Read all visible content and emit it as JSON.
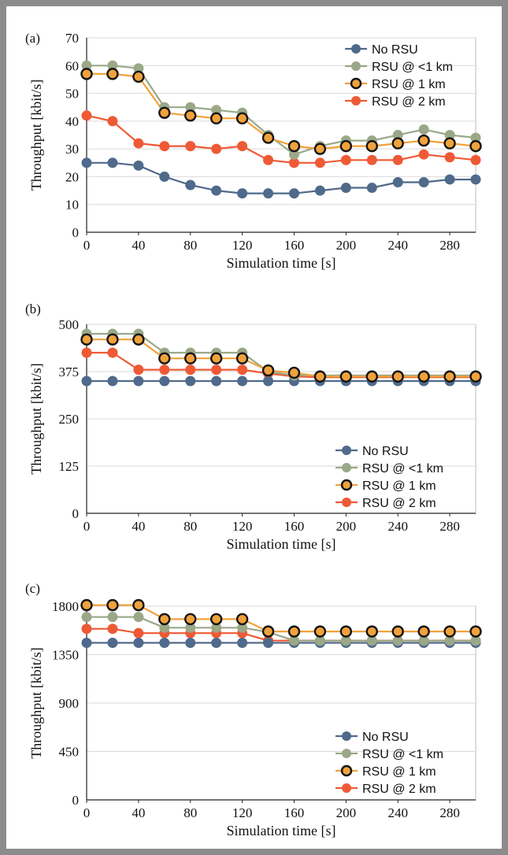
{
  "colors": {
    "no_rsu": "#4f6a8a",
    "rsu_lt1": "#9aa888",
    "rsu_1": "#f0a23c",
    "rsu_1_edge": "#151515",
    "rsu_2": "#ee5a35",
    "grid": "#d9d9d9",
    "frame": "#8c8c8c"
  },
  "chart_data": [
    {
      "type": "line",
      "panel_label": "(a)",
      "xlabel": "Simulation time [s]",
      "ylabel": "Throughput [kbit/s]",
      "x": [
        0,
        20,
        40,
        60,
        80,
        100,
        120,
        140,
        160,
        180,
        200,
        220,
        240,
        260,
        280,
        300
      ],
      "xticks": [
        "0",
        "40",
        "80",
        "120",
        "160",
        "200",
        "240",
        "280"
      ],
      "yticks": [
        "0",
        "10",
        "20",
        "30",
        "40",
        "50",
        "60",
        "70"
      ],
      "ylim": [
        0,
        70
      ],
      "xlim": [
        0,
        300
      ],
      "grid": "horizontal",
      "legend_position": "top-right",
      "series": [
        {
          "name": "No RSU",
          "values": [
            25,
            25,
            24,
            20,
            17,
            15,
            14,
            14,
            14,
            15,
            16,
            16,
            18,
            18,
            19,
            19
          ]
        },
        {
          "name": "RSU @ <1 km",
          "values": [
            60,
            60,
            59,
            45,
            45,
            44,
            43,
            35,
            28,
            31,
            33,
            33,
            35,
            37,
            35,
            34
          ]
        },
        {
          "name": "RSU @ 1 km",
          "values": [
            57,
            57,
            56,
            43,
            42,
            41,
            41,
            34,
            31,
            30,
            31,
            31,
            32,
            33,
            32,
            31
          ]
        },
        {
          "name": "RSU @ 2 km",
          "values": [
            42,
            40,
            32,
            31,
            31,
            30,
            31,
            26,
            25,
            25,
            26,
            26,
            26,
            28,
            27,
            26
          ]
        }
      ]
    },
    {
      "type": "line",
      "panel_label": "(b)",
      "xlabel": "Simulation time [s]",
      "ylabel": "Throughput [kbit/s]",
      "x": [
        0,
        20,
        40,
        60,
        80,
        100,
        120,
        140,
        160,
        180,
        200,
        220,
        240,
        260,
        280,
        300
      ],
      "xticks": [
        "0",
        "40",
        "80",
        "120",
        "160",
        "200",
        "240",
        "280"
      ],
      "yticks": [
        "0",
        "125",
        "250",
        "375",
        "500"
      ],
      "ylim": [
        0,
        500
      ],
      "xlim": [
        0,
        300
      ],
      "grid": "horizontal",
      "legend_position": "bottom-right",
      "series": [
        {
          "name": "No RSU",
          "values": [
            350,
            350,
            350,
            350,
            350,
            350,
            350,
            350,
            350,
            350,
            350,
            350,
            350,
            350,
            350,
            350
          ]
        },
        {
          "name": "RSU @ <1 km",
          "values": [
            475,
            475,
            475,
            425,
            425,
            425,
            425,
            375,
            365,
            365,
            365,
            365,
            365,
            365,
            365,
            365
          ]
        },
        {
          "name": "RSU @ 1 km",
          "values": [
            460,
            460,
            460,
            410,
            410,
            410,
            410,
            378,
            372,
            362,
            362,
            362,
            362,
            362,
            362,
            362
          ]
        },
        {
          "name": "RSU @ 2 km",
          "values": [
            425,
            425,
            380,
            380,
            380,
            380,
            380,
            370,
            362,
            360,
            360,
            360,
            360,
            360,
            360,
            360
          ]
        }
      ]
    },
    {
      "type": "line",
      "panel_label": "(c)",
      "xlabel": "Simulation time [s]",
      "ylabel": "Throughput [kbit/s]",
      "x": [
        0,
        20,
        40,
        60,
        80,
        100,
        120,
        140,
        160,
        180,
        200,
        220,
        240,
        260,
        280,
        300
      ],
      "xticks": [
        "0",
        "40",
        "80",
        "120",
        "160",
        "200",
        "240",
        "280"
      ],
      "yticks": [
        "0",
        "450",
        "900",
        "1350",
        "1800"
      ],
      "ylim": [
        0,
        1800
      ],
      "xlim": [
        0,
        300
      ],
      "grid": "horizontal",
      "legend_position": "bottom-right",
      "series": [
        {
          "name": "No RSU",
          "values": [
            1460,
            1460,
            1460,
            1460,
            1460,
            1460,
            1460,
            1460,
            1460,
            1460,
            1460,
            1460,
            1460,
            1460,
            1460,
            1460
          ]
        },
        {
          "name": "RSU @ <1 km",
          "values": [
            1700,
            1700,
            1700,
            1600,
            1600,
            1600,
            1600,
            1560,
            1480,
            1480,
            1480,
            1480,
            1480,
            1480,
            1480,
            1480
          ]
        },
        {
          "name": "RSU @ 1 km",
          "values": [
            1810,
            1810,
            1810,
            1680,
            1680,
            1680,
            1680,
            1565,
            1565,
            1565,
            1565,
            1565,
            1565,
            1565,
            1565,
            1565
          ]
        },
        {
          "name": "RSU @ 2 km",
          "values": [
            1590,
            1590,
            1550,
            1550,
            1550,
            1550,
            1550,
            1480,
            1480,
            1480,
            1480,
            1480,
            1480,
            1480,
            1480,
            1480
          ]
        }
      ]
    }
  ]
}
